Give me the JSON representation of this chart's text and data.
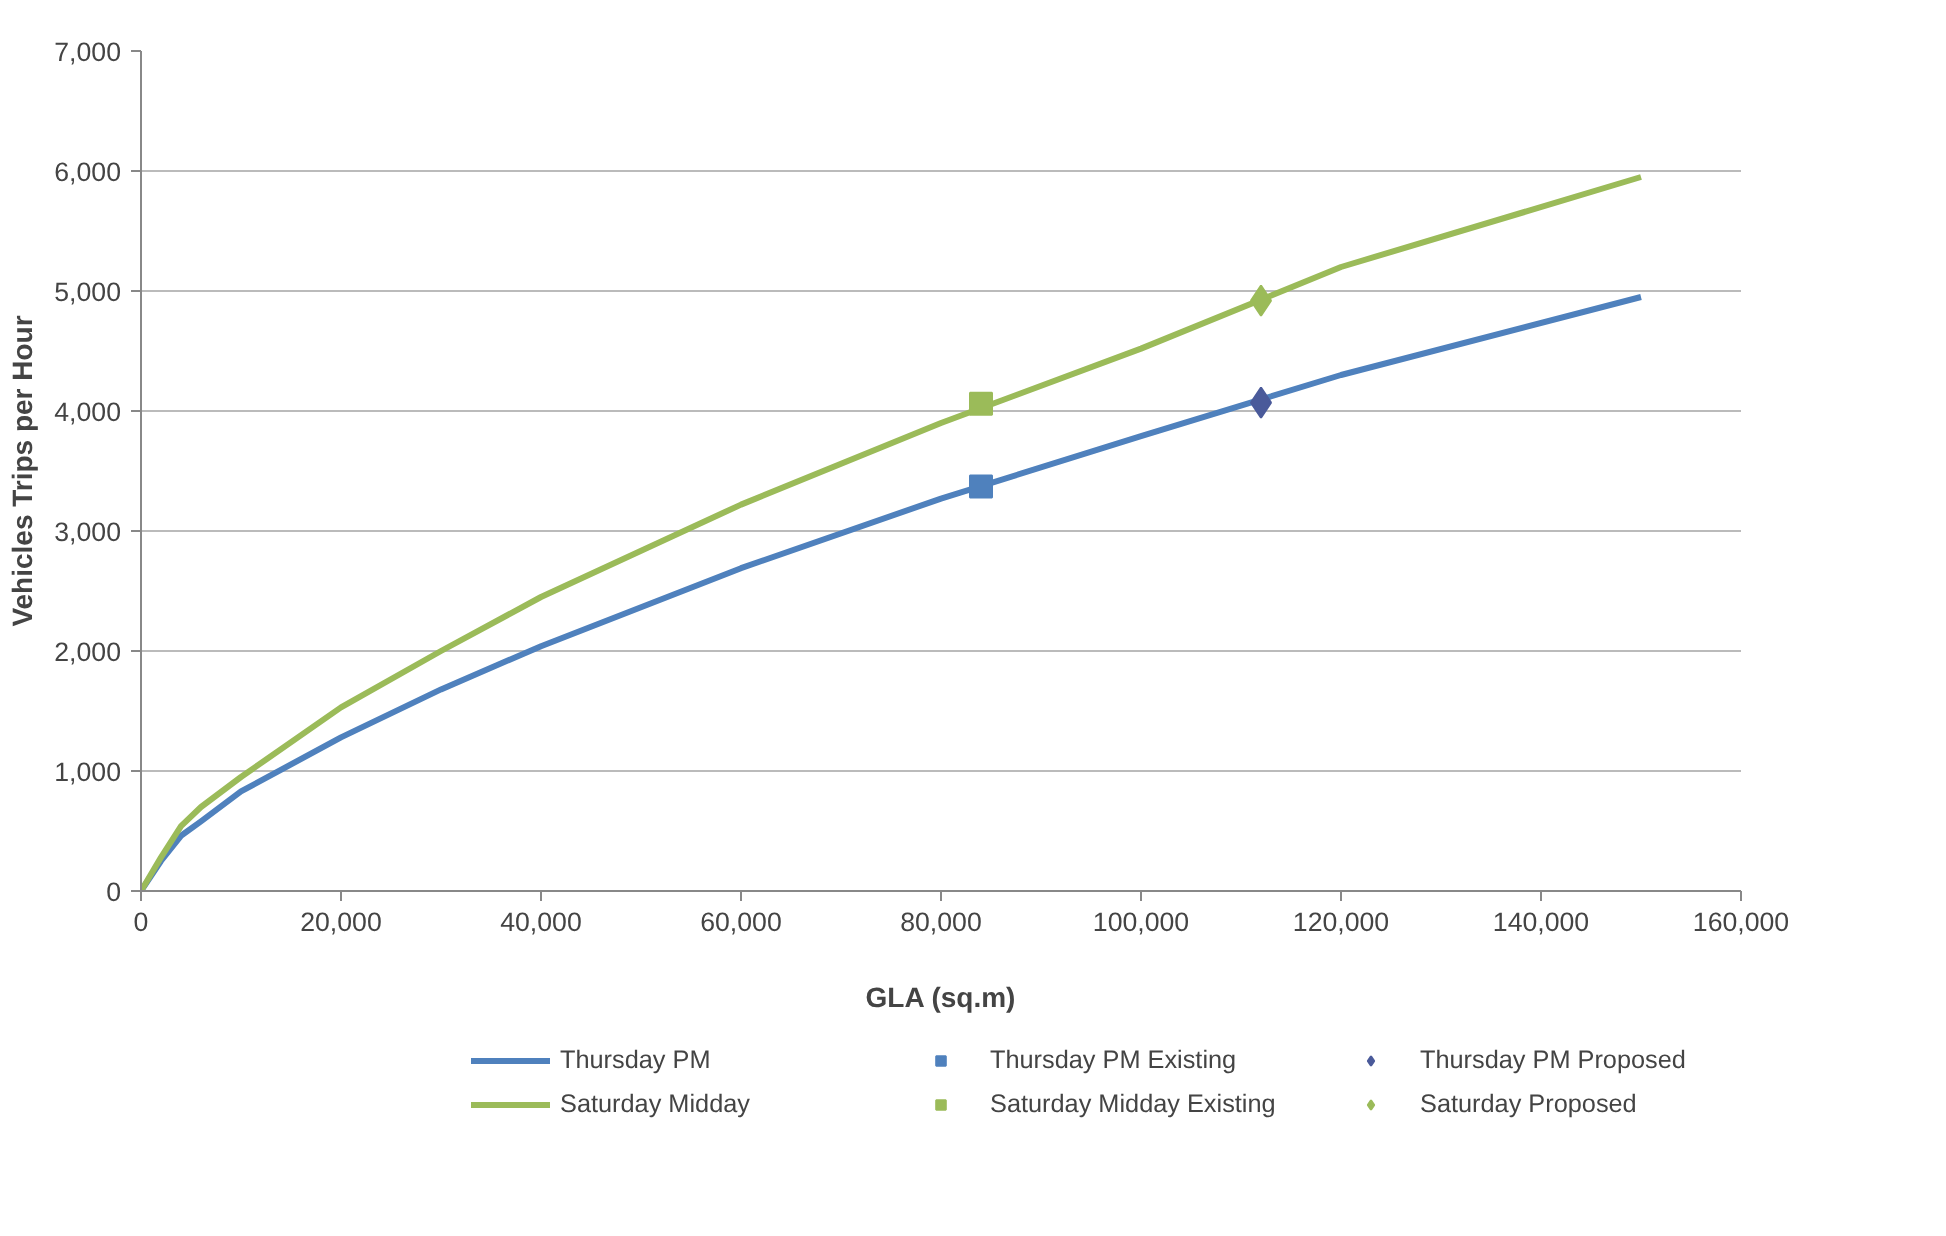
{
  "chart_data": {
    "type": "line",
    "xlabel": "GLA (sq.m)",
    "ylabel": "Vehicles Trips per Hour",
    "xlim": [
      0,
      160000
    ],
    "xticks": [
      {
        "value": 0,
        "label": "0"
      },
      {
        "value": 20000,
        "label": "20,000"
      },
      {
        "value": 40000,
        "label": "40,000"
      },
      {
        "value": 60000,
        "label": "60,000"
      },
      {
        "value": 80000,
        "label": "80,000"
      },
      {
        "value": 100000,
        "label": "100,000"
      },
      {
        "value": 120000,
        "label": "120,000"
      },
      {
        "value": 140000,
        "label": "140,000"
      },
      {
        "value": 160000,
        "label": "160,000"
      }
    ],
    "ylim": [
      0,
      7000
    ],
    "yticks": [
      {
        "value": 0,
        "label": "0"
      },
      {
        "value": 1000,
        "label": "1,000"
      },
      {
        "value": 2000,
        "label": "2,000"
      },
      {
        "value": 3000,
        "label": "3,000"
      },
      {
        "value": 4000,
        "label": "4,000"
      },
      {
        "value": 5000,
        "label": "5,000"
      },
      {
        "value": 6000,
        "label": "6,000"
      },
      {
        "value": 7000,
        "label": "7,000"
      }
    ],
    "grid": "y",
    "legend": "bottom",
    "series": [
      {
        "name": "Thursday PM",
        "type": "line",
        "color": "#4f81bd",
        "x": [
          0,
          2000,
          4000,
          6000,
          10000,
          20000,
          30000,
          40000,
          60000,
          80000,
          100000,
          120000,
          150000
        ],
        "values": [
          0,
          250,
          460,
          580,
          830,
          1280,
          1680,
          2040,
          2690,
          3270,
          3790,
          4300,
          4950
        ]
      },
      {
        "name": "Thursday PM Existing",
        "type": "scatter",
        "marker": "square",
        "color": "#4f81bd",
        "x": [
          84000
        ],
        "values": [
          3370
        ]
      },
      {
        "name": "Thursday PM Proposed",
        "type": "scatter",
        "marker": "diamond",
        "color": "#4a5a9a",
        "x": [
          112000
        ],
        "values": [
          4070
        ]
      },
      {
        "name": "Saturday Midday",
        "type": "line",
        "color": "#9bbb59",
        "x": [
          0,
          2000,
          4000,
          6000,
          10000,
          20000,
          30000,
          40000,
          60000,
          80000,
          100000,
          120000,
          150000
        ],
        "values": [
          0,
          280,
          540,
          700,
          950,
          1530,
          2000,
          2450,
          3220,
          3900,
          4520,
          5200,
          5950
        ]
      },
      {
        "name": "Saturday Midday Existing",
        "type": "scatter",
        "marker": "square",
        "color": "#9bbb59",
        "x": [
          84000
        ],
        "values": [
          4060
        ]
      },
      {
        "name": "Saturday Proposed",
        "type": "scatter",
        "marker": "diamond",
        "color": "#9bbb59",
        "x": [
          112000
        ],
        "values": [
          4920
        ]
      }
    ]
  }
}
